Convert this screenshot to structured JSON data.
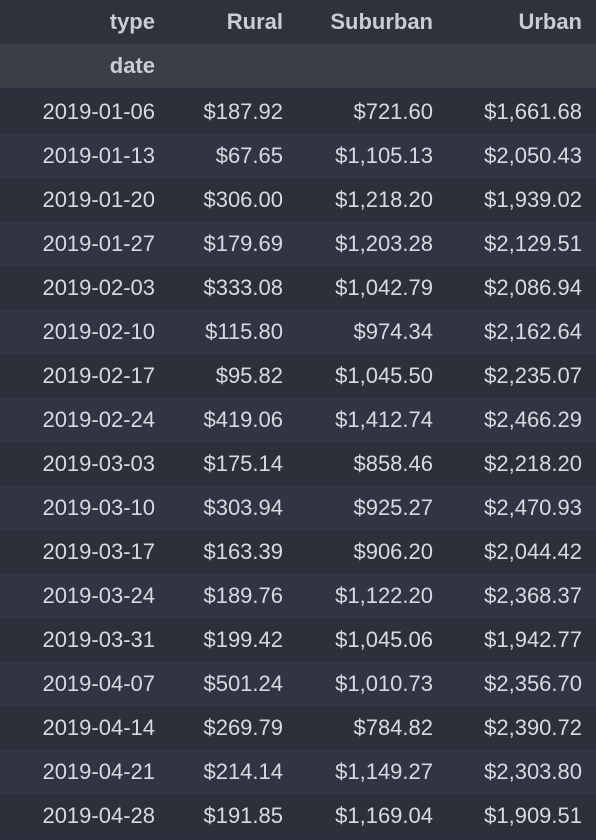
{
  "header": {
    "index_name": "type",
    "columns": [
      "Rural",
      "Suburban",
      "Urban"
    ],
    "row_index_name": "date"
  },
  "rows": [
    {
      "date": "2019-01-06",
      "rural": "$187.92",
      "suburban": "$721.60",
      "urban": "$1,661.68"
    },
    {
      "date": "2019-01-13",
      "rural": "$67.65",
      "suburban": "$1,105.13",
      "urban": "$2,050.43"
    },
    {
      "date": "2019-01-20",
      "rural": "$306.00",
      "suburban": "$1,218.20",
      "urban": "$1,939.02"
    },
    {
      "date": "2019-01-27",
      "rural": "$179.69",
      "suburban": "$1,203.28",
      "urban": "$2,129.51"
    },
    {
      "date": "2019-02-03",
      "rural": "$333.08",
      "suburban": "$1,042.79",
      "urban": "$2,086.94"
    },
    {
      "date": "2019-02-10",
      "rural": "$115.80",
      "suburban": "$974.34",
      "urban": "$2,162.64"
    },
    {
      "date": "2019-02-17",
      "rural": "$95.82",
      "suburban": "$1,045.50",
      "urban": "$2,235.07"
    },
    {
      "date": "2019-02-24",
      "rural": "$419.06",
      "suburban": "$1,412.74",
      "urban": "$2,466.29"
    },
    {
      "date": "2019-03-03",
      "rural": "$175.14",
      "suburban": "$858.46",
      "urban": "$2,218.20"
    },
    {
      "date": "2019-03-10",
      "rural": "$303.94",
      "suburban": "$925.27",
      "urban": "$2,470.93"
    },
    {
      "date": "2019-03-17",
      "rural": "$163.39",
      "suburban": "$906.20",
      "urban": "$2,044.42"
    },
    {
      "date": "2019-03-24",
      "rural": "$189.76",
      "suburban": "$1,122.20",
      "urban": "$2,368.37"
    },
    {
      "date": "2019-03-31",
      "rural": "$199.42",
      "suburban": "$1,045.06",
      "urban": "$1,942.77"
    },
    {
      "date": "2019-04-07",
      "rural": "$501.24",
      "suburban": "$1,010.73",
      "urban": "$2,356.70"
    },
    {
      "date": "2019-04-14",
      "rural": "$269.79",
      "suburban": "$784.82",
      "urban": "$2,390.72"
    },
    {
      "date": "2019-04-21",
      "rural": "$214.14",
      "suburban": "$1,149.27",
      "urban": "$2,303.80"
    },
    {
      "date": "2019-04-28",
      "rural": "$191.85",
      "suburban": "$1,169.04",
      "urban": "$1,909.51"
    }
  ]
}
